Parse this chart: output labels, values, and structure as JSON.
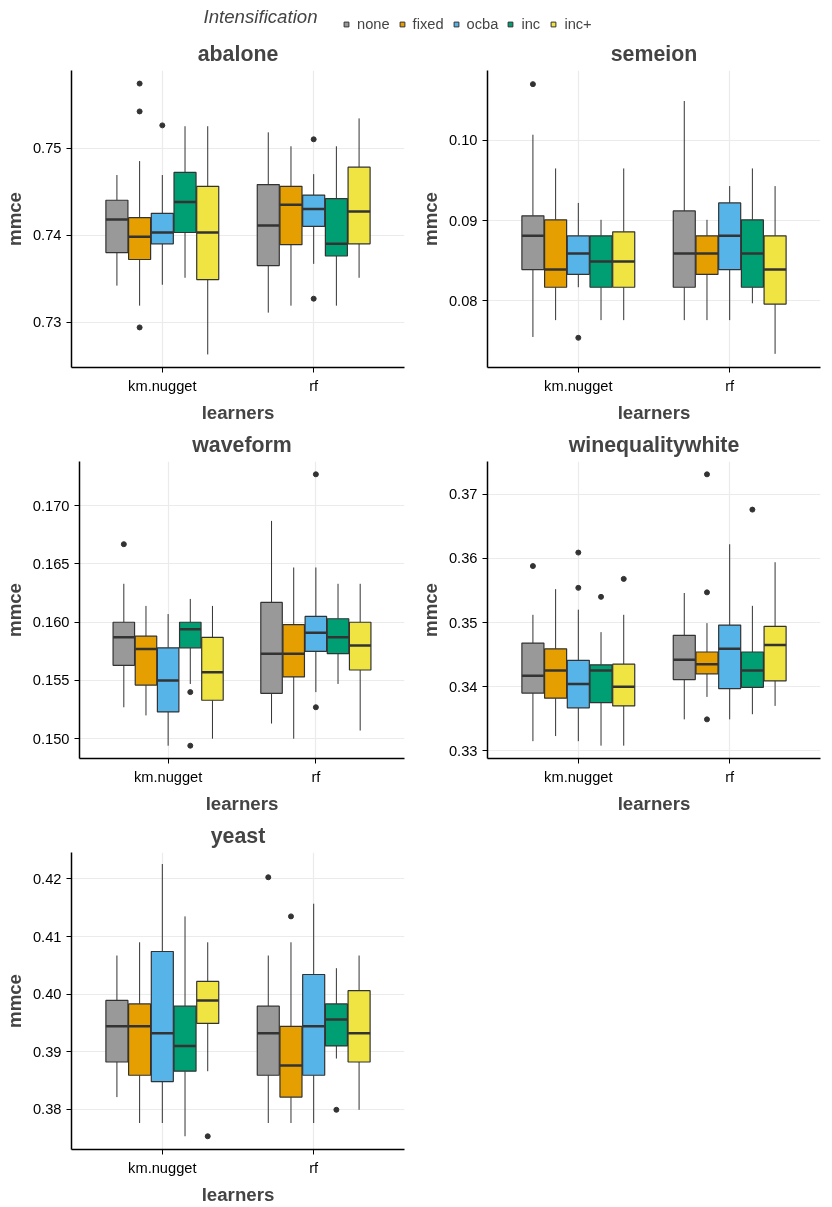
{
  "chart_data": [
    {
      "type": "box",
      "title": "abalone",
      "xlabel": "learners",
      "ylabel": "mmce",
      "legend": "top",
      "legend_title": "Intensification",
      "grid": true,
      "categories": [
        "km.nugget",
        "rf"
      ],
      "ylim": [
        0.7248,
        0.7589
      ],
      "yticks": [
        0.73,
        0.74,
        0.75
      ],
      "series": [
        {
          "name": "none",
          "color": "#999999",
          "boxes": [
            {
              "low": 0.7342,
              "q1": 0.738,
              "median": 0.7418,
              "q3": 0.744,
              "high": 0.7469
            },
            {
              "low": 0.7311,
              "q1": 0.7365,
              "median": 0.7411,
              "q3": 0.7458,
              "high": 0.7518
            }
          ]
        },
        {
          "name": "fixed",
          "color": "#e69f00",
          "boxes": [
            {
              "low": 0.7319,
              "q1": 0.7372,
              "median": 0.7398,
              "q3": 0.742,
              "high": 0.7485,
              "outliers": [
                0.7574,
                0.7542,
                0.7294
              ]
            },
            {
              "low": 0.7319,
              "q1": 0.7389,
              "median": 0.7435,
              "q3": 0.7456,
              "high": 0.7502
            }
          ]
        },
        {
          "name": "ocba",
          "color": "#56b4e9",
          "boxes": [
            {
              "low": 0.7343,
              "q1": 0.739,
              "median": 0.7403,
              "q3": 0.7425,
              "high": 0.7469,
              "outliers": [
                0.7526
              ]
            },
            {
              "low": 0.7367,
              "q1": 0.741,
              "median": 0.743,
              "q3": 0.7446,
              "high": 0.747,
              "outliers": [
                0.751,
                0.7327
              ]
            }
          ]
        },
        {
          "name": "inc",
          "color": "#009e73",
          "boxes": [
            {
              "low": 0.7351,
              "q1": 0.7403,
              "median": 0.7438,
              "q3": 0.7472,
              "high": 0.7525
            },
            {
              "low": 0.7319,
              "q1": 0.7376,
              "median": 0.739,
              "q3": 0.7442,
              "high": 0.7502
            }
          ]
        },
        {
          "name": "inc+",
          "color": "#f0e442",
          "boxes": [
            {
              "low": 0.7263,
              "q1": 0.7349,
              "median": 0.7403,
              "q3": 0.7456,
              "high": 0.7525
            },
            {
              "low": 0.7351,
              "q1": 0.739,
              "median": 0.7427,
              "q3": 0.7478,
              "high": 0.7534
            }
          ]
        }
      ]
    },
    {
      "type": "box",
      "title": "semeion",
      "xlabel": "learners",
      "ylabel": "mmce",
      "grid": true,
      "categories": [
        "km.nugget",
        "rf"
      ],
      "ylim": [
        0.0717,
        0.1087
      ],
      "yticks": [
        0.08,
        0.09,
        {
          "value": 0.1,
          "label": "0.10"
        }
      ],
      "series": [
        {
          "color": "#999999",
          "boxes": [
            {
              "low": 0.0755,
              "q1": 0.0839,
              "median": 0.0881,
              "q3": 0.0906,
              "high": 0.1007,
              "outliers": [
                0.107
              ]
            },
            {
              "low": 0.0776,
              "q1": 0.0817,
              "median": 0.0859,
              "q3": 0.0912,
              "high": 0.1049
            }
          ]
        },
        {
          "color": "#e69f00",
          "boxes": [
            {
              "low": 0.0776,
              "q1": 0.0817,
              "median": 0.0839,
              "q3": 0.0901,
              "high": 0.0965
            },
            {
              "low": 0.0776,
              "q1": 0.0833,
              "median": 0.0859,
              "q3": 0.0881,
              "high": 0.0901
            }
          ]
        },
        {
          "color": "#56b4e9",
          "boxes": [
            {
              "low": 0.0817,
              "q1": 0.0833,
              "median": 0.0859,
              "q3": 0.0881,
              "high": 0.0922,
              "outliers": [
                0.0754
              ]
            },
            {
              "low": 0.0776,
              "q1": 0.0839,
              "median": 0.0881,
              "q3": 0.0922,
              "high": 0.0943
            }
          ]
        },
        {
          "color": "#009e73",
          "boxes": [
            {
              "low": 0.0776,
              "q1": 0.0817,
              "median": 0.0849,
              "q3": 0.0881,
              "high": 0.0901
            },
            {
              "low": 0.0797,
              "q1": 0.0817,
              "median": 0.0859,
              "q3": 0.0901,
              "high": 0.0965
            }
          ]
        },
        {
          "color": "#f0e442",
          "boxes": [
            {
              "low": 0.0776,
              "q1": 0.0817,
              "median": 0.0849,
              "q3": 0.0886,
              "high": 0.0965
            },
            {
              "low": 0.0734,
              "q1": 0.0796,
              "median": 0.0839,
              "q3": 0.0881,
              "high": 0.0943
            }
          ]
        }
      ]
    },
    {
      "type": "box",
      "title": "waveform",
      "xlabel": "learners",
      "ylabel": "mmce",
      "grid": true,
      "categories": [
        "km.nugget",
        "rf"
      ],
      "ylim": [
        0.1483,
        0.1738
      ],
      "yticks": [
        {
          "value": 0.15,
          "label": "0.150"
        },
        0.155,
        {
          "value": 0.16,
          "label": "0.160"
        },
        0.165,
        {
          "value": 0.17,
          "label": "0.170"
        }
      ],
      "series": [
        {
          "color": "#999999",
          "boxes": [
            {
              "low": 0.1527,
              "q1": 0.1563,
              "median": 0.1587,
              "q3": 0.16,
              "high": 0.1633,
              "outliers": [
                0.1667
              ]
            },
            {
              "low": 0.1513,
              "q1": 0.1539,
              "median": 0.1573,
              "q3": 0.1617,
              "high": 0.1687
            }
          ]
        },
        {
          "color": "#e69f00",
          "boxes": [
            {
              "low": 0.152,
              "q1": 0.1546,
              "median": 0.1577,
              "q3": 0.1588,
              "high": 0.1614
            },
            {
              "low": 0.15,
              "q1": 0.1553,
              "median": 0.1573,
              "q3": 0.1598,
              "high": 0.1647
            }
          ]
        },
        {
          "color": "#56b4e9",
          "boxes": [
            {
              "low": 0.1494,
              "q1": 0.1523,
              "median": 0.155,
              "q3": 0.1578,
              "high": 0.1607
            },
            {
              "low": 0.154,
              "q1": 0.1575,
              "median": 0.1591,
              "q3": 0.1605,
              "high": 0.1647,
              "outliers": [
                0.1727,
                0.1527
              ]
            }
          ]
        },
        {
          "color": "#009e73",
          "boxes": [
            {
              "low": 0.1547,
              "q1": 0.1578,
              "median": 0.1594,
              "q3": 0.16,
              "high": 0.162,
              "outliers": [
                0.154,
                0.1494
              ]
            },
            {
              "low": 0.1547,
              "q1": 0.1573,
              "median": 0.1587,
              "q3": 0.1603,
              "high": 0.1633
            }
          ]
        },
        {
          "color": "#f0e442",
          "boxes": [
            {
              "low": 0.15,
              "q1": 0.1533,
              "median": 0.1557,
              "q3": 0.1587,
              "high": 0.1614
            },
            {
              "low": 0.1507,
              "q1": 0.1559,
              "median": 0.158,
              "q3": 0.16,
              "high": 0.1633
            }
          ]
        }
      ]
    },
    {
      "type": "box",
      "title": "winequalitywhite",
      "xlabel": "learners",
      "ylabel": "mmce",
      "grid": true,
      "categories": [
        "km.nugget",
        "rf"
      ],
      "ylim": [
        0.3288,
        0.3751
      ],
      "yticks": [
        0.33,
        0.34,
        0.35,
        0.36,
        0.37
      ],
      "series": [
        {
          "color": "#999999",
          "boxes": [
            {
              "low": 0.3315,
              "q1": 0.339,
              "median": 0.3417,
              "q3": 0.3468,
              "high": 0.3512,
              "outliers": [
                0.3588
              ]
            },
            {
              "low": 0.3349,
              "q1": 0.3411,
              "median": 0.3442,
              "q3": 0.348,
              "high": 0.3546
            }
          ]
        },
        {
          "color": "#e69f00",
          "boxes": [
            {
              "low": 0.3323,
              "q1": 0.3382,
              "median": 0.3425,
              "q3": 0.3459,
              "high": 0.3552
            },
            {
              "low": 0.3384,
              "q1": 0.342,
              "median": 0.3435,
              "q3": 0.3454,
              "high": 0.3499,
              "outliers": [
                0.3731,
                0.3547,
                0.3349
              ]
            }
          ]
        },
        {
          "color": "#56b4e9",
          "boxes": [
            {
              "low": 0.3315,
              "q1": 0.3367,
              "median": 0.3404,
              "q3": 0.3441,
              "high": 0.352,
              "outliers": [
                0.3609,
                0.3554
              ]
            },
            {
              "low": 0.3349,
              "q1": 0.3397,
              "median": 0.3459,
              "q3": 0.3496,
              "high": 0.3622
            }
          ]
        },
        {
          "color": "#009e73",
          "boxes": [
            {
              "low": 0.3308,
              "q1": 0.3375,
              "median": 0.3425,
              "q3": 0.3434,
              "high": 0.3485,
              "outliers": [
                0.354
              ]
            },
            {
              "low": 0.3357,
              "q1": 0.3399,
              "median": 0.3425,
              "q3": 0.3454,
              "high": 0.3526,
              "outliers": [
                0.3676
              ]
            }
          ]
        },
        {
          "color": "#f0e442",
          "boxes": [
            {
              "low": 0.3308,
              "q1": 0.337,
              "median": 0.34,
              "q3": 0.3435,
              "high": 0.3512,
              "outliers": [
                0.3568
              ]
            },
            {
              "low": 0.337,
              "q1": 0.3409,
              "median": 0.3465,
              "q3": 0.3494,
              "high": 0.3594
            }
          ]
        }
      ]
    },
    {
      "type": "box",
      "title": "yeast",
      "xlabel": "learners",
      "ylabel": "mmce",
      "grid": true,
      "categories": [
        "km.nugget",
        "rf"
      ],
      "ylim": [
        0.373,
        0.4246
      ],
      "yticks": [
        0.38,
        0.39,
        {
          "value": 0.4,
          "label": "0.40"
        },
        0.41,
        0.42
      ],
      "series": [
        {
          "color": "#999999",
          "boxes": [
            {
              "low": 0.3821,
              "q1": 0.3882,
              "median": 0.3944,
              "q3": 0.3989,
              "high": 0.4067
            },
            {
              "low": 0.3776,
              "q1": 0.3859,
              "median": 0.3932,
              "q3": 0.3979,
              "high": 0.4067,
              "outliers": [
                0.4203
              ]
            }
          ]
        },
        {
          "color": "#e69f00",
          "boxes": [
            {
              "low": 0.3776,
              "q1": 0.3859,
              "median": 0.3944,
              "q3": 0.3983,
              "high": 0.409
            },
            {
              "low": 0.3776,
              "q1": 0.3821,
              "median": 0.3876,
              "q3": 0.3944,
              "high": 0.409,
              "outliers": [
                0.4135
              ]
            }
          ]
        },
        {
          "color": "#56b4e9",
          "boxes": [
            {
              "low": 0.3776,
              "q1": 0.3848,
              "median": 0.3932,
              "q3": 0.4074,
              "high": 0.4226
            },
            {
              "low": 0.3776,
              "q1": 0.3859,
              "median": 0.3944,
              "q3": 0.4034,
              "high": 0.4157
            }
          ]
        },
        {
          "color": "#009e73",
          "boxes": [
            {
              "low": 0.3753,
              "q1": 0.3866,
              "median": 0.391,
              "q3": 0.3979,
              "high": 0.4135
            },
            {
              "low": 0.3888,
              "q1": 0.391,
              "median": 0.3956,
              "q3": 0.3983,
              "high": 0.4045,
              "outliers": [
                0.3799
              ]
            }
          ]
        },
        {
          "color": "#f0e442",
          "boxes": [
            {
              "low": 0.3866,
              "q1": 0.3949,
              "median": 0.3989,
              "q3": 0.4022,
              "high": 0.409,
              "outliers": [
                0.3753
              ]
            },
            {
              "low": 0.3799,
              "q1": 0.3882,
              "median": 0.3932,
              "q3": 0.4006,
              "high": 0.4067
            }
          ]
        }
      ]
    }
  ]
}
